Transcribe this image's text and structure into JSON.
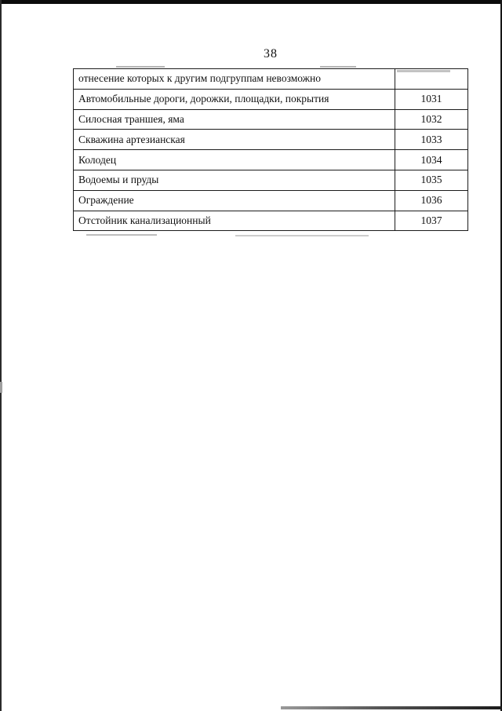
{
  "page": {
    "number": "38"
  },
  "table": {
    "rows": [
      {
        "name": "отнесение которых к другим подгруппам невозможно",
        "code": ""
      },
      {
        "name": "Автомобильные дороги, дорожки, площадки, покрытия",
        "code": "1031"
      },
      {
        "name": "Силосная траншея, яма",
        "code": "1032"
      },
      {
        "name": "Скважина артезианская",
        "code": "1033"
      },
      {
        "name": "Колодец",
        "code": "1034"
      },
      {
        "name": "Водоемы и пруды",
        "code": "1035"
      },
      {
        "name": "Ограждение",
        "code": "1036"
      },
      {
        "name": "Отстойник канализационный",
        "code": "1037"
      }
    ]
  }
}
